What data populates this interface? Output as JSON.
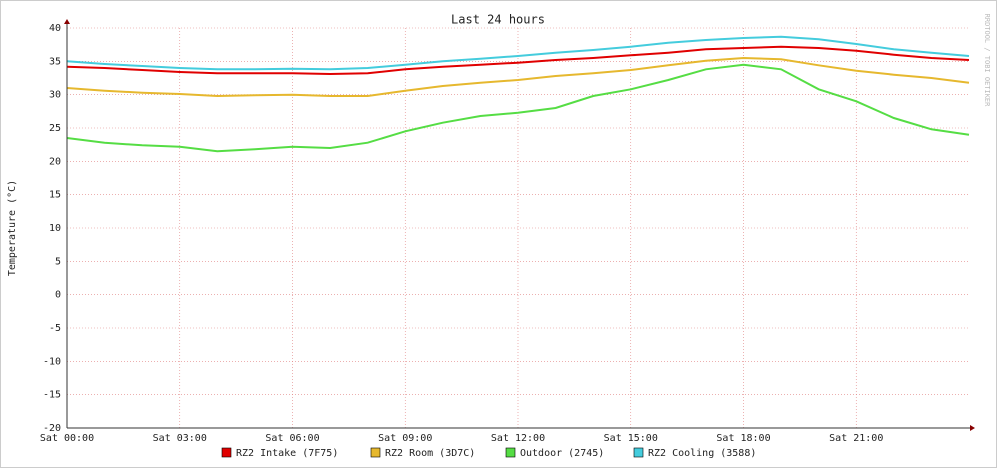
{
  "chart_data": {
    "type": "line",
    "title": "Last 24 hours",
    "y_label": "Temperature (°C)",
    "watermark": "RRDTOOL / TOBI OETIKER",
    "x": [
      0,
      1,
      2,
      3,
      4,
      5,
      6,
      7,
      8,
      9,
      10,
      11,
      12,
      13,
      14,
      15,
      16,
      17,
      18,
      19,
      20,
      21,
      22,
      23,
      24
    ],
    "xlim": [
      0,
      24
    ],
    "xticks": [
      {
        "value": 0,
        "label": "Sat 00:00"
      },
      {
        "value": 3,
        "label": "Sat 03:00"
      },
      {
        "value": 6,
        "label": "Sat 06:00"
      },
      {
        "value": 9,
        "label": "Sat 09:00"
      },
      {
        "value": 12,
        "label": "Sat 12:00"
      },
      {
        "value": 15,
        "label": "Sat 15:00"
      },
      {
        "value": 18,
        "label": "Sat 18:00"
      },
      {
        "value": 21,
        "label": "Sat 21:00"
      }
    ],
    "ylim": [
      -20,
      40
    ],
    "yticks": [
      -20,
      -15,
      -10,
      -5,
      0,
      5,
      10,
      15,
      20,
      25,
      30,
      35,
      40
    ],
    "grid": true,
    "legend": "bottom",
    "series": [
      {
        "name": "RZ2 Intake (7F75)",
        "color": "#e00000",
        "values": [
          34.2,
          34,
          33.7,
          33.4,
          33.2,
          33.2,
          33.2,
          33.1,
          33.2,
          33.8,
          34.2,
          34.5,
          34.8,
          35.2,
          35.5,
          35.9,
          36.3,
          36.8,
          37,
          37.2,
          37,
          36.6,
          36,
          35.5,
          35.2
        ]
      },
      {
        "name": "RZ2 Room (3D7C)",
        "color": "#e6b82e",
        "values": [
          31,
          30.6,
          30.3,
          30.1,
          29.8,
          29.9,
          30,
          29.8,
          29.8,
          30.6,
          31.3,
          31.8,
          32.2,
          32.8,
          33.2,
          33.7,
          34.4,
          35.1,
          35.5,
          35.3,
          34.4,
          33.6,
          33,
          32.5,
          31.8
        ]
      },
      {
        "name": "Outdoor (2745)",
        "color": "#55dd44",
        "values": [
          23.5,
          22.8,
          22.4,
          22.2,
          21.5,
          21.8,
          22.2,
          22,
          22.8,
          24.5,
          25.8,
          26.8,
          27.3,
          28,
          29.8,
          30.8,
          32.2,
          33.8,
          34.5,
          33.8,
          30.8,
          29,
          26.5,
          24.8,
          24
        ]
      },
      {
        "name": "RZ2 Cooling (3588)",
        "color": "#44ccdd",
        "values": [
          35,
          34.6,
          34.3,
          34,
          33.8,
          33.8,
          33.9,
          33.8,
          34,
          34.5,
          35,
          35.4,
          35.8,
          36.3,
          36.7,
          37.2,
          37.8,
          38.2,
          38.5,
          38.7,
          38.3,
          37.6,
          36.8,
          36.3,
          35.8
        ]
      }
    ]
  }
}
